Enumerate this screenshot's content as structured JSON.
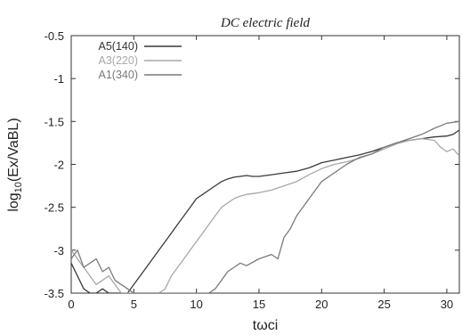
{
  "chart_data": {
    "type": "line",
    "title": "DC electric field",
    "xlabel": "tωci",
    "ylabel_base": "log",
    "ylabel_sub": "10",
    "ylabel_rest": "(Ex/VaBL)",
    "xlim": [
      0,
      31
    ],
    "ylim": [
      -3.5,
      -0.5
    ],
    "xticks": [
      0,
      5,
      10,
      15,
      20,
      25,
      30
    ],
    "yticks": [
      -3.5,
      -3,
      -2.5,
      -2,
      -1.5,
      -1,
      -0.5
    ],
    "xtick_labels": [
      "0",
      "5",
      "10",
      "15",
      "20",
      "25",
      "30"
    ],
    "ytick_labels": [
      "-3.5",
      "-3",
      "-2.5",
      "-2",
      "-1.5",
      "-1",
      "-0.5"
    ],
    "grid": false,
    "legend_position": "top-left",
    "series": [
      {
        "name": "A5(140)",
        "color": "#3a3a3a",
        "x": [
          0,
          0.5,
          1,
          1.5,
          2,
          2.5,
          3,
          3.5,
          4,
          4.5,
          5,
          5.5,
          6,
          6.5,
          7,
          7.5,
          8,
          8.5,
          9,
          9.5,
          10,
          10.5,
          11,
          11.5,
          12,
          12.5,
          13,
          13.5,
          14,
          14.5,
          15,
          16,
          17,
          18,
          19,
          20,
          21,
          22,
          23,
          24,
          25,
          26,
          27,
          28,
          29,
          30,
          30.5,
          31
        ],
        "y": [
          -3.15,
          -3.3,
          -3.45,
          -3.5,
          -3.5,
          -3.45,
          -3.5,
          -3.5,
          -3.5,
          -3.5,
          -3.4,
          -3.3,
          -3.2,
          -3.1,
          -3.0,
          -2.9,
          -2.8,
          -2.7,
          -2.6,
          -2.5,
          -2.4,
          -2.35,
          -2.3,
          -2.25,
          -2.2,
          -2.17,
          -2.15,
          -2.14,
          -2.13,
          -2.14,
          -2.14,
          -2.12,
          -2.1,
          -2.08,
          -2.04,
          -1.98,
          -1.95,
          -1.92,
          -1.89,
          -1.85,
          -1.8,
          -1.75,
          -1.72,
          -1.7,
          -1.68,
          -1.67,
          -1.65,
          -1.6
        ]
      },
      {
        "name": "A3(220)",
        "color": "#a8a8a8",
        "x": [
          0,
          0.5,
          1,
          1.5,
          2,
          2.5,
          3,
          3.5,
          4,
          4.5,
          5,
          6,
          7,
          7.5,
          8,
          8.5,
          9,
          9.5,
          10,
          10.5,
          11,
          11.5,
          12,
          12.5,
          13,
          13.5,
          14,
          15,
          16,
          17,
          18,
          19,
          20,
          21,
          22,
          23,
          24,
          25,
          26,
          27,
          28,
          29,
          29.5,
          30,
          30.5,
          31
        ],
        "y": [
          -3.0,
          -3.1,
          -3.2,
          -3.3,
          -3.4,
          -3.35,
          -3.3,
          -3.4,
          -3.5,
          -3.5,
          -3.5,
          -3.5,
          -3.5,
          -3.45,
          -3.3,
          -3.2,
          -3.1,
          -3.0,
          -2.9,
          -2.8,
          -2.7,
          -2.6,
          -2.5,
          -2.45,
          -2.4,
          -2.37,
          -2.35,
          -2.33,
          -2.3,
          -2.25,
          -2.2,
          -2.12,
          -2.05,
          -2.0,
          -1.97,
          -1.93,
          -1.88,
          -1.82,
          -1.76,
          -1.72,
          -1.7,
          -1.72,
          -1.8,
          -1.85,
          -1.82,
          -1.9
        ]
      },
      {
        "name": "A1(340)",
        "color": "#7a7a7a",
        "x": [
          0,
          0.5,
          1,
          1.5,
          2,
          2.5,
          3,
          3.5,
          4,
          4.5,
          5,
          6,
          7,
          8,
          9,
          10,
          11,
          11.5,
          12,
          12.5,
          13,
          13.5,
          14,
          15,
          16,
          16.5,
          17,
          17.5,
          18,
          18.5,
          19,
          20,
          21,
          22,
          23,
          24,
          25,
          26,
          27,
          28,
          29,
          30,
          31
        ],
        "y": [
          -3.1,
          -3.0,
          -3.2,
          -3.15,
          -3.1,
          -3.25,
          -3.2,
          -3.35,
          -3.4,
          -3.45,
          -3.5,
          -3.5,
          -3.5,
          -3.5,
          -3.5,
          -3.5,
          -3.5,
          -3.45,
          -3.35,
          -3.25,
          -3.2,
          -3.15,
          -3.18,
          -3.1,
          -3.05,
          -3.1,
          -2.85,
          -2.75,
          -2.6,
          -2.5,
          -2.4,
          -2.2,
          -2.1,
          -2.0,
          -1.92,
          -1.88,
          -1.8,
          -1.75,
          -1.7,
          -1.65,
          -1.58,
          -1.52,
          -1.5
        ]
      }
    ]
  }
}
